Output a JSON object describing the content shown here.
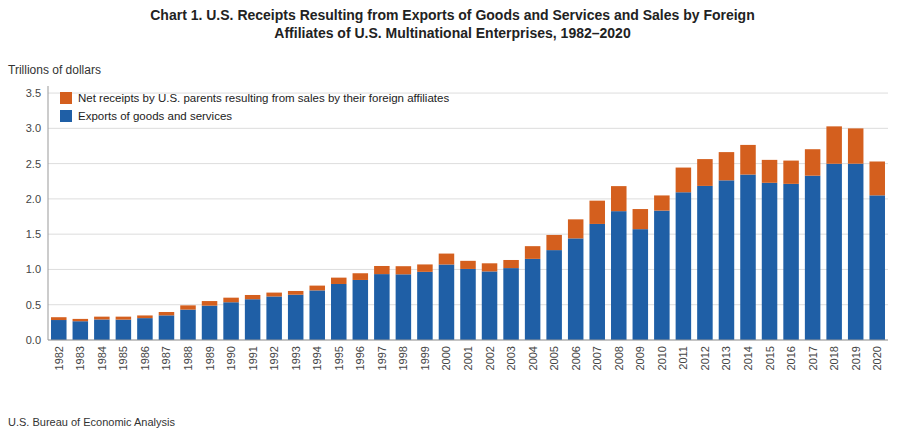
{
  "chart_data": {
    "type": "bar",
    "stacked": true,
    "title": "Chart 1. U.S. Receipts Resulting from Exports of Goods and Services and Sales by Foreign",
    "subtitle": "Affiliates of U.S. Multinational Enterprises, 1982–2020",
    "y_label": "Trillions of dollars",
    "annotations": [
      "U.S. Bureau of Economic Analysis"
    ],
    "categories": [
      "1982",
      "1983",
      "1984",
      "1985",
      "1986",
      "1987",
      "1988",
      "1989",
      "1990",
      "1991",
      "1992",
      "1993",
      "1994",
      "1995",
      "1996",
      "1997",
      "1998",
      "1999",
      "2000",
      "2001",
      "2002",
      "2003",
      "2004",
      "2005",
      "2006",
      "2007",
      "2008",
      "2009",
      "2010",
      "2011",
      "2012",
      "2013",
      "2014",
      "2015",
      "2016",
      "2017",
      "2018",
      "2019",
      "2020"
    ],
    "series": [
      {
        "name": "Exports of goods and services",
        "color": "#1f5fa6",
        "values": [
          0.283,
          0.266,
          0.291,
          0.289,
          0.31,
          0.349,
          0.431,
          0.487,
          0.535,
          0.578,
          0.617,
          0.642,
          0.703,
          0.794,
          0.851,
          0.934,
          0.931,
          0.966,
          1.07,
          1.007,
          0.972,
          1.019,
          1.15,
          1.274,
          1.44,
          1.645,
          1.826,
          1.571,
          1.834,
          2.094,
          2.184,
          2.263,
          2.345,
          2.228,
          2.213,
          2.329,
          2.498,
          2.499,
          2.05
        ]
      },
      {
        "name": "Net receipts by U.S. parents resulting from sales by their foreign affiliates",
        "color": "#d45f1e",
        "values": [
          0.04,
          0.033,
          0.04,
          0.042,
          0.038,
          0.048,
          0.06,
          0.065,
          0.065,
          0.06,
          0.055,
          0.053,
          0.068,
          0.09,
          0.095,
          0.115,
          0.115,
          0.105,
          0.155,
          0.115,
          0.115,
          0.115,
          0.18,
          0.215,
          0.27,
          0.33,
          0.355,
          0.285,
          0.215,
          0.35,
          0.38,
          0.4,
          0.42,
          0.325,
          0.33,
          0.375,
          0.53,
          0.5,
          0.48
        ]
      }
    ],
    "ylim": [
      0,
      3.6
    ],
    "yticks": [
      {
        "value": 0,
        "label": "0.0"
      },
      0.5,
      {
        "value": 1,
        "label": "1.0"
      },
      1.5,
      {
        "value": 2,
        "label": "2.0"
      },
      2.5,
      {
        "value": 3,
        "label": "3.0"
      },
      3.5
    ],
    "grid": true,
    "legend": "upper left"
  }
}
